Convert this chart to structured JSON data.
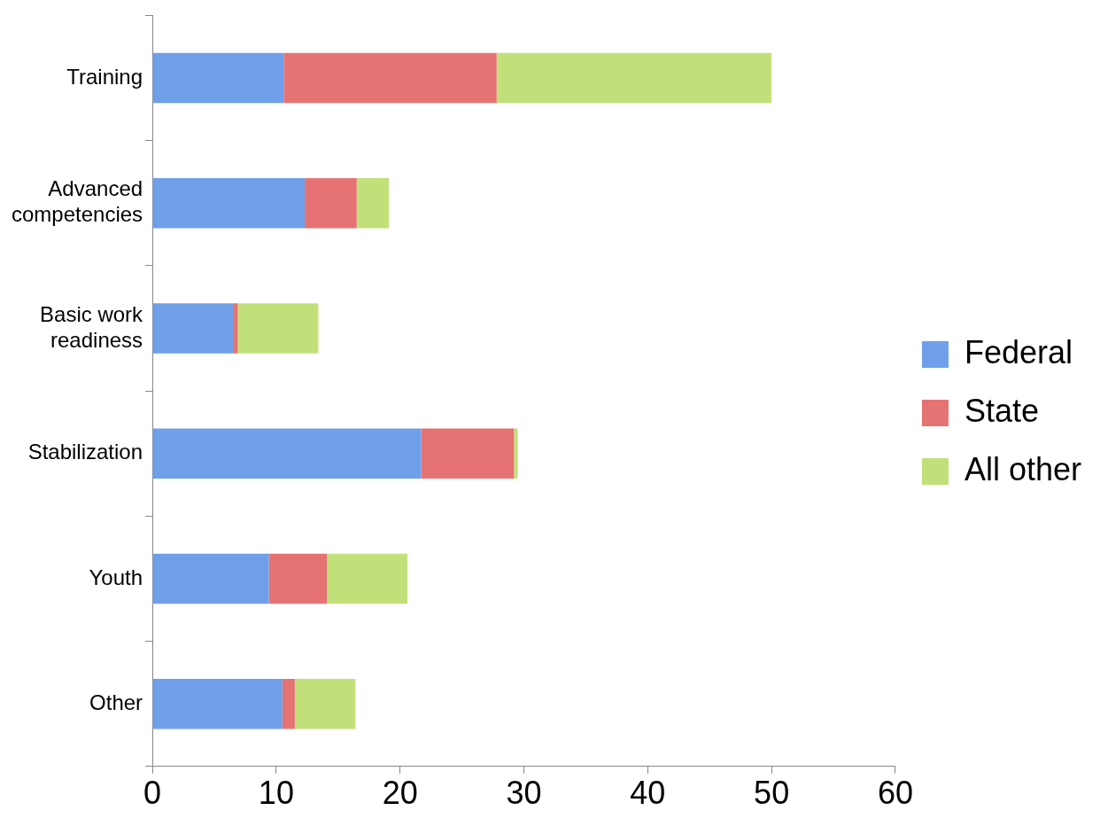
{
  "chart_data": {
    "type": "bar",
    "orientation": "horizontal",
    "stacked": true,
    "categories": [
      "Training",
      "Advanced competencies",
      "Basic work readiness",
      "Stabilization",
      "Youth",
      "Other"
    ],
    "series": [
      {
        "name": "Federal",
        "color": "#6f9fe8",
        "values": [
          10.6,
          12.3,
          6.5,
          21.7,
          9.4,
          10.5
        ]
      },
      {
        "name": "State",
        "color": "#e57373",
        "values": [
          17.2,
          4.2,
          0.4,
          7.5,
          4.7,
          1.0
        ]
      },
      {
        "name": "All other",
        "color": "#c2e07a",
        "values": [
          22.2,
          2.6,
          6.5,
          0.3,
          6.5,
          4.9
        ]
      }
    ],
    "xlim": [
      0,
      60
    ],
    "xticks": [
      0,
      10,
      20,
      30,
      40,
      50,
      60
    ],
    "grid": false,
    "legend": "right"
  }
}
